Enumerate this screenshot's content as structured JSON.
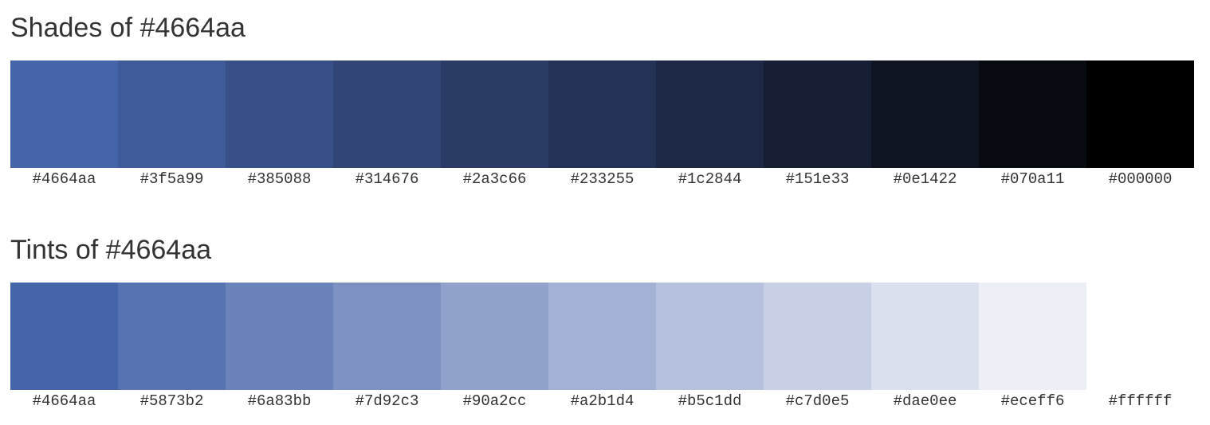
{
  "shades": {
    "title": "Shades of #4664aa",
    "swatches": [
      {
        "hex": "#4664aa",
        "label": "#4664aa"
      },
      {
        "hex": "#3f5a99",
        "label": "#3f5a99"
      },
      {
        "hex": "#385088",
        "label": "#385088"
      },
      {
        "hex": "#314676",
        "label": "#314676"
      },
      {
        "hex": "#2a3c66",
        "label": "#2a3c66"
      },
      {
        "hex": "#233255",
        "label": "#233255"
      },
      {
        "hex": "#1c2844",
        "label": "#1c2844"
      },
      {
        "hex": "#151e33",
        "label": "#151e33"
      },
      {
        "hex": "#0e1422",
        "label": "#0e1422"
      },
      {
        "hex": "#070a11",
        "label": "#070a11"
      },
      {
        "hex": "#000000",
        "label": "#000000"
      }
    ]
  },
  "tints": {
    "title": "Tints of #4664aa",
    "swatches": [
      {
        "hex": "#4664aa",
        "label": "#4664aa"
      },
      {
        "hex": "#5873b2",
        "label": "#5873b2"
      },
      {
        "hex": "#6a83bb",
        "label": "#6a83bb"
      },
      {
        "hex": "#7d92c3",
        "label": "#7d92c3"
      },
      {
        "hex": "#90a2cc",
        "label": "#90a2cc"
      },
      {
        "hex": "#a2b1d4",
        "label": "#a2b1d4"
      },
      {
        "hex": "#b5c1dd",
        "label": "#b5c1dd"
      },
      {
        "hex": "#c7d0e5",
        "label": "#c7d0e5"
      },
      {
        "hex": "#dae0ee",
        "label": "#dae0ee"
      },
      {
        "hex": "#eceff6",
        "label": "#eceff6"
      },
      {
        "hex": "#ffffff",
        "label": "#ffffff"
      }
    ]
  }
}
